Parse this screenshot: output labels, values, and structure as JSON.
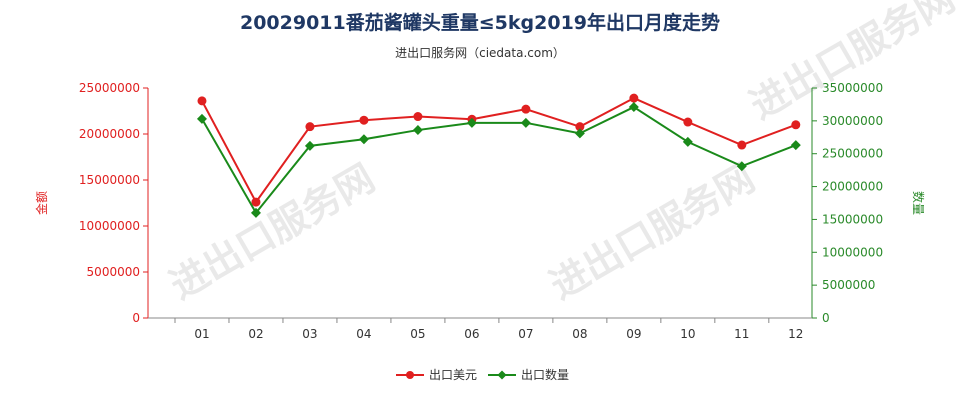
{
  "chart_data": {
    "type": "line",
    "title": "20029011番茄酱罐头重量≤5kg2019年出口月度走势",
    "subtitle": "进出口服务网（ciedata.com）",
    "categories": [
      "01",
      "02",
      "03",
      "04",
      "05",
      "06",
      "07",
      "08",
      "09",
      "10",
      "11",
      "12"
    ],
    "y_left": {
      "label": "金额",
      "ticks": [
        "0",
        "5000000",
        "10000000",
        "15000000",
        "20000000",
        "25000000"
      ],
      "ylim": [
        0,
        25000000
      ],
      "color": "#e02020"
    },
    "y_right": {
      "label": "数量",
      "ticks": [
        "0",
        "5000000",
        "10000000",
        "15000000",
        "20000000",
        "25000000",
        "30000000",
        "35000000"
      ],
      "ylim": [
        0,
        35000000
      ],
      "color": "#2a8a2a"
    },
    "series": [
      {
        "name": "出口美元",
        "axis": "left",
        "color": "#e02020",
        "marker": "circle",
        "values": [
          23600000,
          12600000,
          20800000,
          21500000,
          21900000,
          21600000,
          22700000,
          20800000,
          23900000,
          21300000,
          18800000,
          21000000
        ]
      },
      {
        "name": "出口数量",
        "axis": "right",
        "color": "#1a8a1a",
        "marker": "diamond",
        "values": [
          30300000,
          16000000,
          26200000,
          27200000,
          28600000,
          29700000,
          29700000,
          28100000,
          32100000,
          26800000,
          23100000,
          26300000
        ]
      }
    ],
    "watermark": "进出口服务网",
    "grid": false,
    "legend_position": "bottom"
  }
}
